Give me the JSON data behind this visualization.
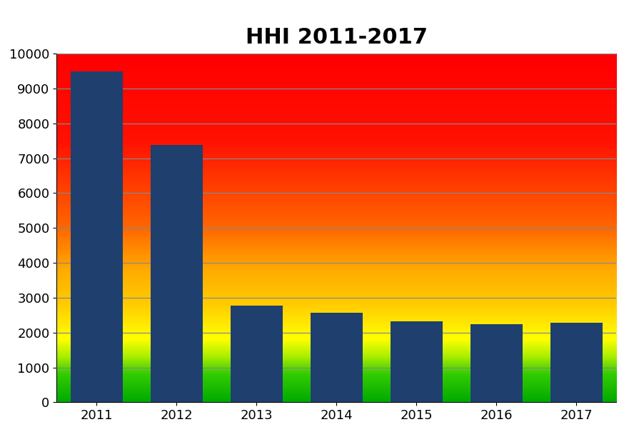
{
  "title": "HHI 2011-2017",
  "title_fontsize": 22,
  "title_fontweight": "bold",
  "categories": [
    "2011",
    "2012",
    "2013",
    "2014",
    "2015",
    "2016",
    "2017"
  ],
  "values": [
    9500,
    7380,
    2780,
    2560,
    2320,
    2240,
    2280
  ],
  "bar_color": "#1f3f6e",
  "ylim": [
    0,
    10000
  ],
  "yticks": [
    0,
    1000,
    2000,
    3000,
    4000,
    5000,
    6000,
    7000,
    8000,
    9000,
    10000
  ],
  "grid_color": "#888888",
  "outer_bg": "#ffffff",
  "gradient_colors": [
    {
      "val": 0.0,
      "color": "#00aa00"
    },
    {
      "val": 0.08,
      "color": "#33cc00"
    },
    {
      "val": 0.13,
      "color": "#aaee00"
    },
    {
      "val": 0.18,
      "color": "#ffff00"
    },
    {
      "val": 0.28,
      "color": "#ffcc00"
    },
    {
      "val": 0.38,
      "color": "#ffaa00"
    },
    {
      "val": 0.5,
      "color": "#ff6600"
    },
    {
      "val": 0.65,
      "color": "#ff3300"
    },
    {
      "val": 0.75,
      "color": "#ff1100"
    },
    {
      "val": 1.0,
      "color": "#ff0000"
    }
  ]
}
